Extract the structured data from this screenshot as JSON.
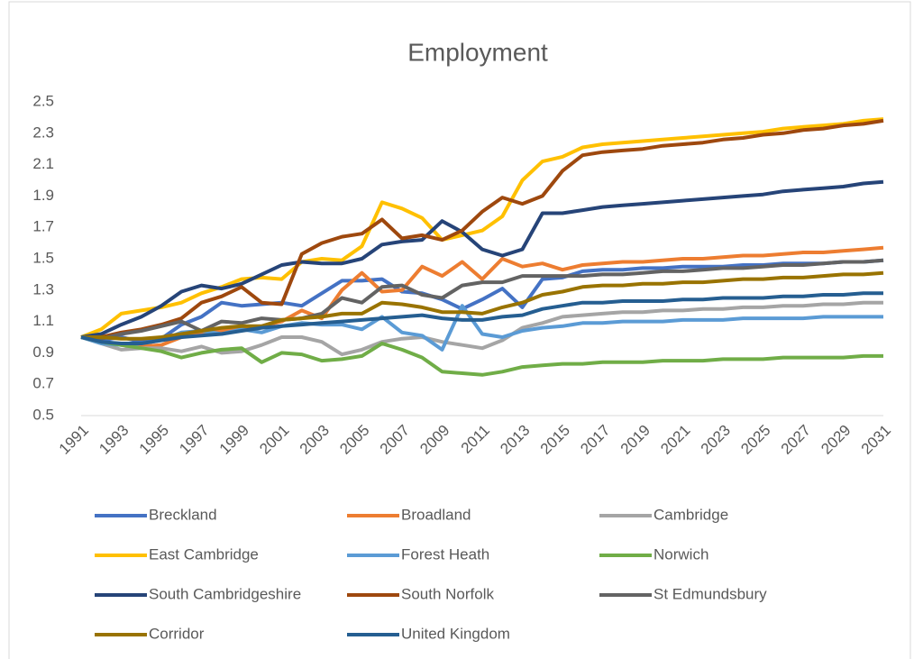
{
  "chart_data": {
    "type": "line",
    "title": "Employment",
    "categories": [
      "1991",
      null,
      "1993",
      null,
      "1995",
      null,
      "1997",
      null,
      "1999",
      null,
      "2001",
      null,
      "2003",
      null,
      "2005",
      null,
      "2007",
      null,
      "2009",
      null,
      "2011",
      null,
      "2013",
      null,
      "2015",
      null,
      "2017",
      null,
      "2019",
      null,
      "2021",
      null,
      "2023",
      null,
      "2025",
      null,
      "2027",
      null,
      "2029",
      null,
      "2031"
    ],
    "ylim": [
      0.5,
      2.5
    ],
    "yticks": [
      0.5,
      0.7,
      0.9,
      1.1,
      1.3,
      1.5,
      1.7,
      1.9,
      2.1,
      2.3,
      2.5
    ],
    "grid": false,
    "legend": "bottom",
    "series": [
      {
        "name": "Breckland",
        "color": "#4472c4",
        "values": [
          1.0,
          0.98,
          1.0,
          0.97,
          0.99,
          1.08,
          1.13,
          1.22,
          1.2,
          1.21,
          1.22,
          1.2,
          1.28,
          1.36,
          1.36,
          1.37,
          1.29,
          1.28,
          1.24,
          1.18,
          1.24,
          1.31,
          1.19,
          1.37,
          1.38,
          1.42,
          1.43,
          1.43,
          1.44,
          1.44,
          1.45,
          1.45,
          1.45,
          1.46,
          1.46,
          1.47,
          1.47,
          1.47,
          1.48,
          1.48,
          1.49
        ]
      },
      {
        "name": "Broadland",
        "color": "#ed7d31",
        "values": [
          1.0,
          0.97,
          0.95,
          0.94,
          0.95,
          1.0,
          1.03,
          1.04,
          1.05,
          1.07,
          1.1,
          1.17,
          1.12,
          1.3,
          1.41,
          1.29,
          1.3,
          1.45,
          1.39,
          1.48,
          1.37,
          1.5,
          1.45,
          1.47,
          1.43,
          1.46,
          1.47,
          1.48,
          1.48,
          1.49,
          1.5,
          1.5,
          1.51,
          1.52,
          1.52,
          1.53,
          1.54,
          1.54,
          1.55,
          1.56,
          1.57
        ]
      },
      {
        "name": "Cambridge",
        "color": "#a5a5a5",
        "values": [
          1.0,
          0.96,
          0.92,
          0.93,
          0.93,
          0.91,
          0.94,
          0.9,
          0.91,
          0.95,
          1.0,
          1.0,
          0.97,
          0.89,
          0.92,
          0.97,
          0.99,
          1.0,
          0.97,
          0.95,
          0.93,
          0.98,
          1.06,
          1.09,
          1.13,
          1.14,
          1.15,
          1.16,
          1.16,
          1.17,
          1.17,
          1.18,
          1.18,
          1.19,
          1.19,
          1.2,
          1.2,
          1.21,
          1.21,
          1.22,
          1.22
        ]
      },
      {
        "name": "East Cambridge",
        "color": "#ffc000",
        "values": [
          1.0,
          1.05,
          1.15,
          1.17,
          1.19,
          1.22,
          1.28,
          1.32,
          1.37,
          1.38,
          1.37,
          1.48,
          1.5,
          1.49,
          1.58,
          1.86,
          1.82,
          1.76,
          1.62,
          1.65,
          1.68,
          1.77,
          2.0,
          2.12,
          2.15,
          2.21,
          2.23,
          2.24,
          2.25,
          2.26,
          2.27,
          2.28,
          2.29,
          2.3,
          2.31,
          2.33,
          2.34,
          2.35,
          2.36,
          2.38,
          2.39
        ]
      },
      {
        "name": "Forest Heath",
        "color": "#5b9bd5",
        "values": [
          1.0,
          0.96,
          0.95,
          0.96,
          0.98,
          1.03,
          1.04,
          1.02,
          1.05,
          1.03,
          1.07,
          1.09,
          1.08,
          1.08,
          1.05,
          1.13,
          1.03,
          1.01,
          0.92,
          1.2,
          1.02,
          1.0,
          1.04,
          1.06,
          1.07,
          1.09,
          1.09,
          1.1,
          1.1,
          1.1,
          1.11,
          1.11,
          1.11,
          1.12,
          1.12,
          1.12,
          1.12,
          1.13,
          1.13,
          1.13,
          1.13
        ]
      },
      {
        "name": "Norwich",
        "color": "#70ad47",
        "values": [
          1.0,
          0.97,
          0.95,
          0.93,
          0.91,
          0.87,
          0.9,
          0.92,
          0.93,
          0.84,
          0.9,
          0.89,
          0.85,
          0.86,
          0.88,
          0.96,
          0.92,
          0.87,
          0.78,
          0.77,
          0.76,
          0.78,
          0.81,
          0.82,
          0.83,
          0.83,
          0.84,
          0.84,
          0.84,
          0.85,
          0.85,
          0.85,
          0.86,
          0.86,
          0.86,
          0.87,
          0.87,
          0.87,
          0.87,
          0.88,
          0.88
        ]
      },
      {
        "name": "South Cambridgeshire",
        "color": "#264478",
        "values": [
          1.0,
          1.02,
          1.08,
          1.13,
          1.2,
          1.29,
          1.33,
          1.31,
          1.34,
          1.4,
          1.46,
          1.48,
          1.47,
          1.47,
          1.5,
          1.59,
          1.61,
          1.62,
          1.74,
          1.67,
          1.56,
          1.52,
          1.56,
          1.79,
          1.79,
          1.81,
          1.83,
          1.84,
          1.85,
          1.86,
          1.87,
          1.88,
          1.89,
          1.9,
          1.91,
          1.93,
          1.94,
          1.95,
          1.96,
          1.98,
          1.99
        ]
      },
      {
        "name": "South Norfolk",
        "color": "#9e480e",
        "values": [
          1.0,
          1.0,
          1.03,
          1.05,
          1.08,
          1.12,
          1.22,
          1.26,
          1.32,
          1.22,
          1.21,
          1.53,
          1.6,
          1.64,
          1.66,
          1.75,
          1.63,
          1.65,
          1.62,
          1.68,
          1.8,
          1.89,
          1.85,
          1.9,
          2.06,
          2.16,
          2.18,
          2.19,
          2.2,
          2.22,
          2.23,
          2.24,
          2.26,
          2.27,
          2.29,
          2.3,
          2.32,
          2.33,
          2.35,
          2.36,
          2.38
        ]
      },
      {
        "name": "St Edmundsbury",
        "color": "#636363",
        "values": [
          1.0,
          0.99,
          1.02,
          1.04,
          1.07,
          1.1,
          1.04,
          1.1,
          1.09,
          1.12,
          1.11,
          1.12,
          1.15,
          1.25,
          1.22,
          1.32,
          1.33,
          1.27,
          1.25,
          1.33,
          1.35,
          1.35,
          1.39,
          1.39,
          1.39,
          1.39,
          1.4,
          1.4,
          1.41,
          1.42,
          1.42,
          1.43,
          1.44,
          1.44,
          1.45,
          1.46,
          1.46,
          1.47,
          1.48,
          1.48,
          1.49
        ]
      },
      {
        "name": "Corridor",
        "color": "#997300",
        "values": [
          1.0,
          1.0,
          0.99,
          0.99,
          1.0,
          1.02,
          1.04,
          1.06,
          1.07,
          1.07,
          1.11,
          1.12,
          1.13,
          1.15,
          1.15,
          1.22,
          1.21,
          1.19,
          1.16,
          1.16,
          1.15,
          1.19,
          1.22,
          1.27,
          1.29,
          1.32,
          1.33,
          1.33,
          1.34,
          1.34,
          1.35,
          1.35,
          1.36,
          1.37,
          1.37,
          1.38,
          1.38,
          1.39,
          1.4,
          1.4,
          1.41
        ]
      },
      {
        "name": "United Kingdom",
        "color": "#255e91",
        "values": [
          1.0,
          0.97,
          0.96,
          0.96,
          0.98,
          1.0,
          1.01,
          1.02,
          1.04,
          1.06,
          1.07,
          1.08,
          1.09,
          1.1,
          1.11,
          1.12,
          1.13,
          1.14,
          1.12,
          1.11,
          1.11,
          1.13,
          1.14,
          1.18,
          1.2,
          1.22,
          1.22,
          1.23,
          1.23,
          1.23,
          1.24,
          1.24,
          1.25,
          1.25,
          1.25,
          1.26,
          1.26,
          1.27,
          1.27,
          1.28,
          1.28
        ]
      }
    ]
  }
}
